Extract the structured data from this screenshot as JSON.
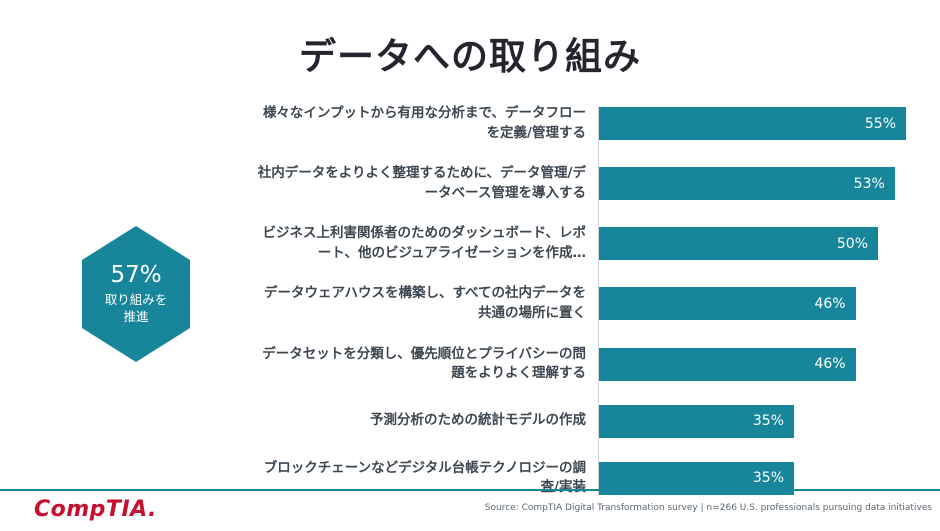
{
  "title": "データへの取り組み",
  "callout": {
    "value": "57%",
    "label_line1": "取り組みを",
    "label_line2": "推進"
  },
  "chart_data": {
    "type": "bar",
    "orientation": "horizontal",
    "title": "データへの取り組み",
    "categories": [
      "様々なインプットから有用な分析まで、データフローを定義/管理する",
      "社内データをよりよく整理するために、データ管理/データベース管理を導入する",
      "ビジネス上利害関係者のためのダッシュボード、レポート、他のビジュアライゼーションを作成…",
      "データウェアハウスを構築し、すべての社内データを共通の場所に置く",
      "データセットを分類し、優先順位とプライバシーの問題をよりよく理解する",
      "予測分析のための統計モデルの作成",
      "ブロックチェーンなどデジタル台帳テクノロジーの調査/実装"
    ],
    "values": [
      55,
      53,
      50,
      46,
      46,
      35,
      35
    ],
    "value_labels": [
      "55%",
      "53%",
      "50%",
      "46%",
      "46%",
      "35%",
      "35%"
    ],
    "xlim": [
      0,
      58
    ],
    "grid": false,
    "legend": false,
    "bar_color": "#17869B"
  },
  "footer": {
    "logo_text": "CompTIA.",
    "source": "Source: CompTIA Digital Transformation survey | n=266 U.S. professionals pursuing data initiatives"
  },
  "colors": {
    "accent_teal": "#17869B",
    "title_color": "#26242e",
    "logo_red": "#C8102E",
    "source_gray": "#5b6770"
  }
}
